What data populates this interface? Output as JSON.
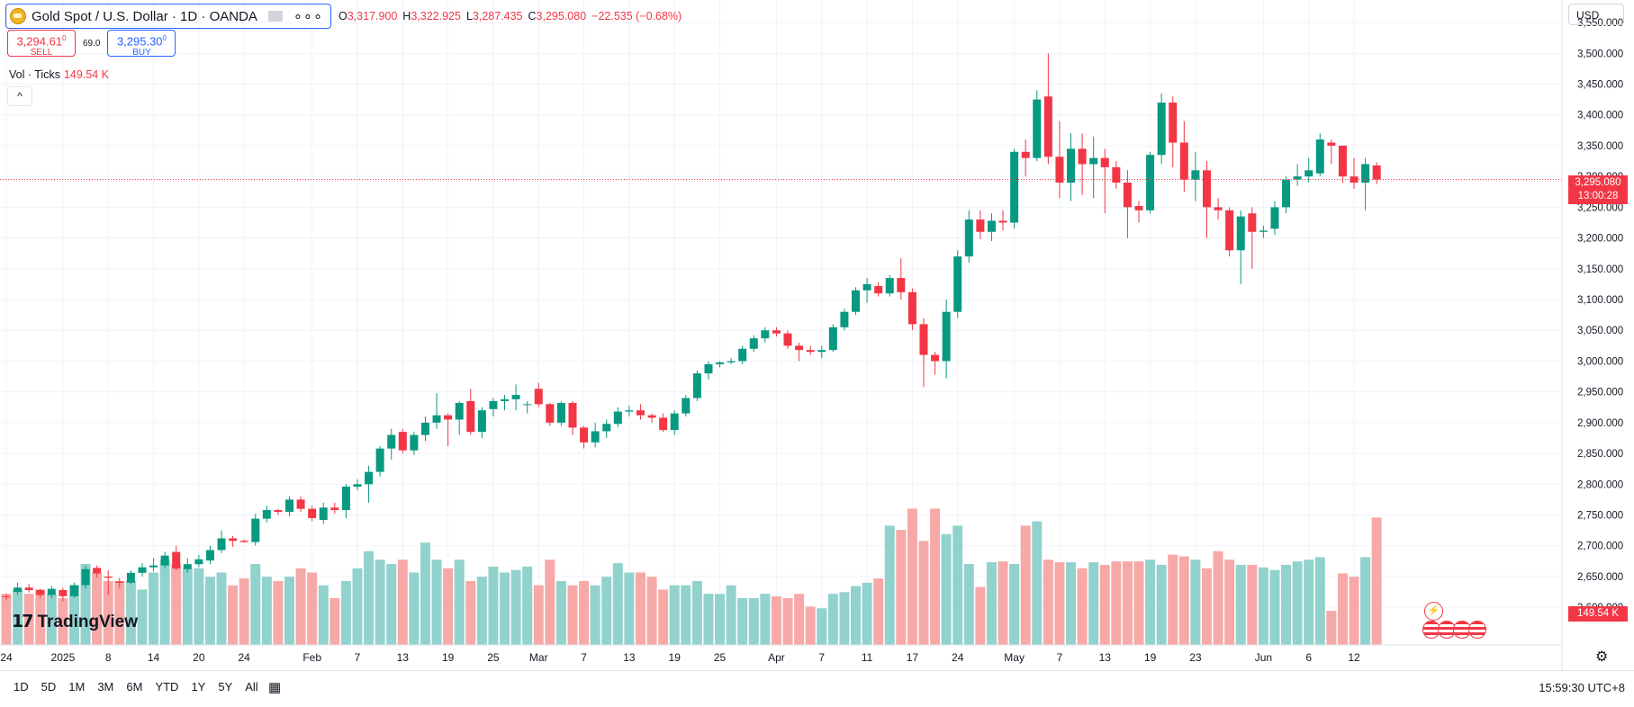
{
  "header": {
    "symbol_title": "Gold Spot / U.S. Dollar · 1D · OANDA",
    "ohlc": {
      "o_label": "O",
      "o": "3,317.900",
      "h_label": "H",
      "h": "3,322.925",
      "l_label": "L",
      "l": "3,287.435",
      "c_label": "C",
      "c": "3,295.080",
      "change": "−22.535 (−0.68%)"
    },
    "sell_price": "3,294.61",
    "sell_price_sup": "0",
    "sell_label": "SELL",
    "spread": "69.0",
    "buy_price": "3,295.30",
    "buy_price_sup": "0",
    "buy_label": "BUY",
    "vol_label": "Vol · Ticks",
    "vol_value": "149.54 K",
    "collapse_icon": "^"
  },
  "price_scale": {
    "currency": "USD",
    "last_price": "3,295.080",
    "countdown": "13:00:28",
    "last_volume": "149.54 K"
  },
  "logo": "TradingView",
  "bottom_bar": {
    "ranges": [
      "1D",
      "5D",
      "1M",
      "3M",
      "6M",
      "YTD",
      "1Y",
      "5Y",
      "All"
    ],
    "clock": "15:59:30 UTC+8"
  },
  "colors": {
    "up": "#089981",
    "down": "#f23645",
    "up_vol": "#92d2cc",
    "down_vol": "#f7a9a7",
    "grid": "#f0f3fa"
  },
  "icons": {
    "currency": "dropdown",
    "logo": "gold-coin-icon",
    "settings": "gear-icon",
    "calendar": "calendar-range-icon",
    "events": "lightning-icon",
    "flags": "us-flag-icon"
  },
  "chart_data": {
    "type": "candlestick",
    "price_axis": {
      "ylim": [
        2590,
        3575
      ],
      "ticks": [
        3550,
        3500,
        3450,
        3400,
        3350,
        3300,
        3250,
        3200,
        3150,
        3100,
        3050,
        3000,
        2950,
        2900,
        2850,
        2800,
        2750,
        2700,
        2650,
        2600
      ],
      "tick_labels": [
        "3,550.000",
        "3,500.000",
        "3,450.000",
        "3,400.000",
        "3,350.000",
        "3,300.000",
        "3,250.000",
        "3,200.000",
        "3,150.000",
        "3,100.000",
        "3,050.000",
        "3,000.000",
        "2,950.000",
        "2,900.000",
        "2,850.000",
        "2,800.000",
        "2,750.000",
        "2,700.000",
        "2,650.000",
        "2,600.000"
      ]
    },
    "time_axis": {
      "labels": [
        {
          "label": "24",
          "bar": 0
        },
        {
          "label": "2025",
          "bar": 5
        },
        {
          "label": "8",
          "bar": 9
        },
        {
          "label": "14",
          "bar": 13
        },
        {
          "label": "20",
          "bar": 17
        },
        {
          "label": "24",
          "bar": 21
        },
        {
          "label": "Feb",
          "bar": 27
        },
        {
          "label": "7",
          "bar": 31
        },
        {
          "label": "13",
          "bar": 35
        },
        {
          "label": "19",
          "bar": 39
        },
        {
          "label": "25",
          "bar": 43
        },
        {
          "label": "Mar",
          "bar": 47
        },
        {
          "label": "7",
          "bar": 51
        },
        {
          "label": "13",
          "bar": 55
        },
        {
          "label": "19",
          "bar": 59
        },
        {
          "label": "25",
          "bar": 63
        },
        {
          "label": "Apr",
          "bar": 68
        },
        {
          "label": "7",
          "bar": 72
        },
        {
          "label": "11",
          "bar": 76
        },
        {
          "label": "17",
          "bar": 80
        },
        {
          "label": "24",
          "bar": 84
        },
        {
          "label": "May",
          "bar": 89
        },
        {
          "label": "7",
          "bar": 93
        },
        {
          "label": "13",
          "bar": 97
        },
        {
          "label": "19",
          "bar": 101
        },
        {
          "label": "23",
          "bar": 105
        },
        {
          "label": "Jun",
          "bar": 111
        },
        {
          "label": "6",
          "bar": 115
        },
        {
          "label": "12",
          "bar": 119
        }
      ]
    },
    "volume_scale_max": 190,
    "candles": [
      [
        2618,
        2622,
        2612,
        2617,
        60
      ],
      [
        2625,
        2640,
        2620,
        2632,
        65
      ],
      [
        2632,
        2638,
        2624,
        2628,
        60
      ],
      [
        2628,
        2630,
        2615,
        2620,
        65
      ],
      [
        2620,
        2635,
        2615,
        2630,
        60
      ],
      [
        2628,
        2632,
        2610,
        2618,
        55
      ],
      [
        2618,
        2640,
        2615,
        2636,
        70
      ],
      [
        2636,
        2668,
        2630,
        2662,
        95
      ],
      [
        2664,
        2668,
        2648,
        2655,
        85
      ],
      [
        2650,
        2660,
        2620,
        2648,
        75
      ],
      [
        2642,
        2648,
        2632,
        2640,
        75
      ],
      [
        2640,
        2660,
        2638,
        2656,
        75
      ],
      [
        2656,
        2672,
        2650,
        2665,
        65
      ],
      [
        2665,
        2680,
        2658,
        2668,
        85
      ],
      [
        2668,
        2690,
        2663,
        2684,
        100
      ],
      [
        2690,
        2700,
        2660,
        2663,
        95
      ],
      [
        2662,
        2680,
        2656,
        2670,
        90
      ],
      [
        2670,
        2685,
        2665,
        2678,
        90
      ],
      [
        2676,
        2700,
        2670,
        2693,
        80
      ],
      [
        2693,
        2725,
        2688,
        2712,
        85
      ],
      [
        2712,
        2716,
        2698,
        2708,
        70
      ],
      [
        2708,
        2710,
        2705,
        2706,
        78
      ],
      [
        2706,
        2752,
        2700,
        2744,
        95
      ],
      [
        2744,
        2765,
        2738,
        2758,
        80
      ],
      [
        2758,
        2760,
        2750,
        2755,
        75
      ],
      [
        2755,
        2780,
        2748,
        2775,
        80
      ],
      [
        2775,
        2780,
        2755,
        2760,
        90
      ],
      [
        2760,
        2765,
        2740,
        2745,
        85
      ],
      [
        2742,
        2770,
        2735,
        2762,
        70
      ],
      [
        2762,
        2770,
        2752,
        2758,
        55
      ],
      [
        2758,
        2800,
        2745,
        2796,
        75
      ],
      [
        2796,
        2808,
        2790,
        2800,
        90
      ],
      [
        2800,
        2830,
        2770,
        2820,
        110
      ],
      [
        2820,
        2862,
        2812,
        2858,
        100
      ],
      [
        2858,
        2890,
        2840,
        2880,
        95
      ],
      [
        2885,
        2890,
        2850,
        2855,
        100
      ],
      [
        2855,
        2885,
        2848,
        2880,
        85
      ],
      [
        2880,
        2910,
        2870,
        2900,
        120
      ],
      [
        2900,
        2948,
        2890,
        2912,
        100
      ],
      [
        2912,
        2915,
        2862,
        2905,
        90
      ],
      [
        2905,
        2935,
        2880,
        2932,
        100
      ],
      [
        2935,
        2955,
        2880,
        2885,
        75
      ],
      [
        2885,
        2925,
        2875,
        2920,
        80
      ],
      [
        2922,
        2940,
        2910,
        2935,
        92
      ],
      [
        2935,
        2945,
        2920,
        2938,
        85
      ],
      [
        2938,
        2962,
        2920,
        2945,
        88
      ],
      [
        2930,
        2935,
        2915,
        2930,
        92
      ],
      [
        2955,
        2965,
        2925,
        2930,
        70
      ],
      [
        2930,
        2932,
        2895,
        2900,
        100
      ],
      [
        2900,
        2935,
        2895,
        2932,
        75
      ],
      [
        2932,
        2935,
        2880,
        2892,
        70
      ],
      [
        2892,
        2895,
        2858,
        2868,
        75
      ],
      [
        2868,
        2900,
        2860,
        2886,
        70
      ],
      [
        2886,
        2905,
        2875,
        2898,
        80
      ],
      [
        2898,
        2925,
        2893,
        2918,
        96
      ],
      [
        2918,
        2928,
        2910,
        2920,
        85
      ],
      [
        2920,
        2930,
        2905,
        2912,
        85
      ],
      [
        2912,
        2915,
        2900,
        2908,
        80
      ],
      [
        2908,
        2915,
        2885,
        2888,
        65
      ],
      [
        2888,
        2920,
        2880,
        2915,
        70
      ],
      [
        2915,
        2945,
        2910,
        2940,
        70
      ],
      [
        2940,
        2985,
        2935,
        2980,
        75
      ],
      [
        2980,
        3000,
        2970,
        2995,
        60
      ],
      [
        2995,
        3000,
        2990,
        2998,
        60
      ],
      [
        2998,
        3005,
        2995,
        3000,
        70
      ],
      [
        3000,
        3025,
        2995,
        3020,
        55
      ],
      [
        3020,
        3042,
        3015,
        3037,
        55
      ],
      [
        3037,
        3055,
        3030,
        3050,
        60
      ],
      [
        3050,
        3055,
        3040,
        3045,
        57
      ],
      [
        3045,
        3050,
        3020,
        3025,
        55
      ],
      [
        3025,
        3030,
        3000,
        3018,
        60
      ],
      [
        3018,
        3025,
        3010,
        3015,
        45
      ],
      [
        3015,
        3025,
        3005,
        3018,
        43
      ],
      [
        3018,
        3060,
        3015,
        3055,
        60
      ],
      [
        3055,
        3085,
        3050,
        3080,
        62
      ],
      [
        3080,
        3120,
        3075,
        3115,
        69
      ],
      [
        3115,
        3135,
        3095,
        3125,
        73
      ],
      [
        3122,
        3128,
        3105,
        3110,
        78
      ],
      [
        3110,
        3140,
        3105,
        3135,
        140
      ],
      [
        3135,
        3167,
        3100,
        3112,
        135
      ],
      [
        3112,
        3118,
        3050,
        3060,
        160
      ],
      [
        3060,
        3070,
        2958,
        3010,
        122
      ],
      [
        3010,
        3015,
        2978,
        3000,
        160
      ],
      [
        3000,
        3100,
        2972,
        3080,
        130
      ],
      [
        3080,
        3180,
        3070,
        3170,
        140
      ],
      [
        3170,
        3245,
        3160,
        3230,
        95
      ],
      [
        3230,
        3245,
        3198,
        3210,
        68
      ],
      [
        3210,
        3240,
        3195,
        3228,
        97
      ],
      [
        3228,
        3245,
        3212,
        3225,
        98
      ],
      [
        3225,
        3345,
        3215,
        3340,
        95
      ],
      [
        3340,
        3360,
        3300,
        3330,
        140
      ],
      [
        3330,
        3440,
        3325,
        3425,
        145
      ],
      [
        3430,
        3500,
        3320,
        3332,
        100
      ],
      [
        3332,
        3390,
        3265,
        3290,
        97
      ],
      [
        3290,
        3370,
        3260,
        3345,
        97
      ],
      [
        3345,
        3370,
        3270,
        3320,
        90
      ],
      [
        3320,
        3365,
        3265,
        3330,
        97
      ],
      [
        3330,
        3345,
        3240,
        3315,
        94
      ],
      [
        3315,
        3325,
        3280,
        3290,
        98
      ],
      [
        3290,
        3310,
        3200,
        3250,
        98
      ],
      [
        3252,
        3260,
        3225,
        3245,
        98
      ],
      [
        3245,
        3340,
        3240,
        3335,
        100
      ],
      [
        3335,
        3435,
        3320,
        3420,
        94
      ],
      [
        3420,
        3430,
        3315,
        3355,
        106
      ],
      [
        3355,
        3390,
        3275,
        3295,
        104
      ],
      [
        3295,
        3340,
        3260,
        3310,
        100
      ],
      [
        3310,
        3325,
        3200,
        3250,
        90
      ],
      [
        3250,
        3265,
        3230,
        3245,
        110
      ],
      [
        3245,
        3250,
        3170,
        3180,
        100
      ],
      [
        3180,
        3245,
        3125,
        3235,
        94
      ],
      [
        3240,
        3250,
        3150,
        3210,
        94
      ],
      [
        3210,
        3220,
        3200,
        3212,
        91
      ],
      [
        3215,
        3260,
        3205,
        3250,
        88
      ],
      [
        3250,
        3300,
        3240,
        3295,
        94
      ],
      [
        3295,
        3320,
        3285,
        3300,
        98
      ],
      [
        3300,
        3330,
        3290,
        3310,
        100
      ],
      [
        3305,
        3370,
        3300,
        3360,
        103
      ],
      [
        3355,
        3360,
        3320,
        3350,
        40
      ],
      [
        3350,
        3350,
        3290,
        3300,
        84
      ],
      [
        3300,
        3330,
        3280,
        3290,
        80
      ],
      [
        3290,
        3330,
        3245,
        3320,
        103
      ],
      [
        3317.9,
        3322.925,
        3287.435,
        3295.08,
        149.54
      ]
    ]
  }
}
